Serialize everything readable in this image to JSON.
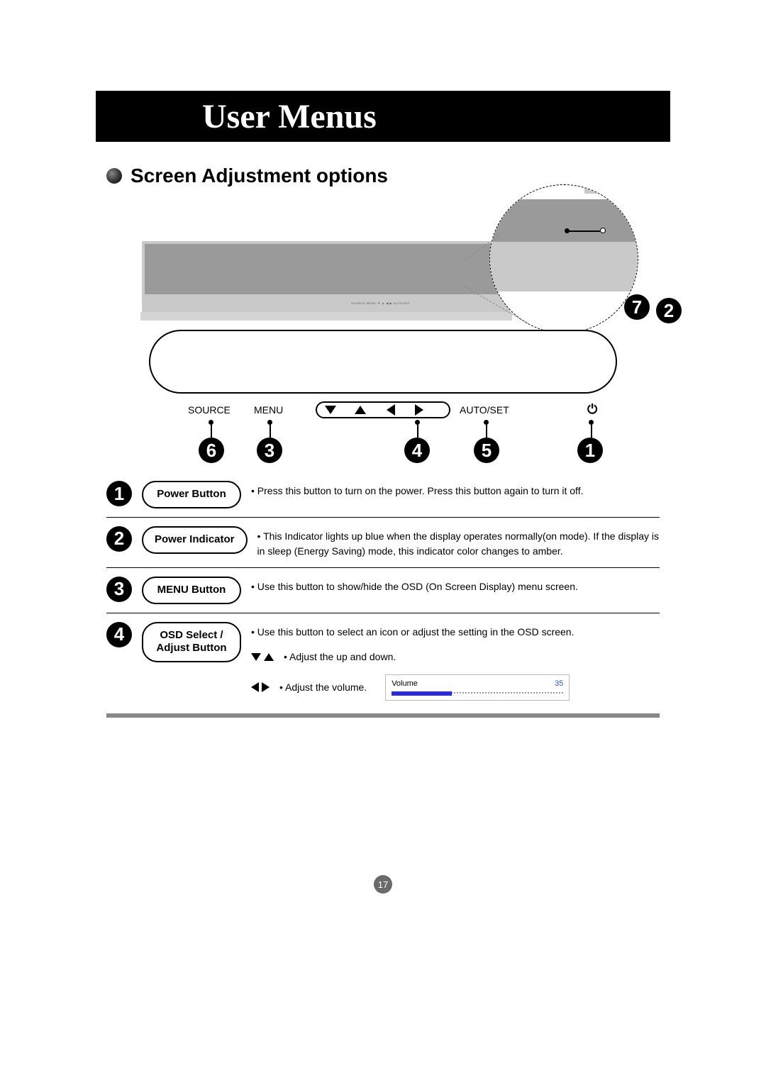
{
  "header": {
    "title": "User Menus"
  },
  "section": {
    "title": "Screen Adjustment options"
  },
  "panel": {
    "source": "SOURCE",
    "menu": "MENU",
    "autoset": "AUTO/SET",
    "tiny": "SOURCE  MENU  ▼  ▲  ◀  ▶  AUTO/SET"
  },
  "callouts": {
    "n1": "1",
    "n2": "2",
    "n3": "3",
    "n4": "4",
    "n5": "5",
    "n6": "6",
    "n7": "7"
  },
  "items": {
    "i1": {
      "label": "Power Button",
      "text": "Press this button to turn on the power. Press this button again to turn it off."
    },
    "i2": {
      "label": "Power Indicator",
      "text": "This Indicator lights up blue when the display operates normally(on mode). If the display is in sleep (Energy Saving) mode, this indicator color changes to amber."
    },
    "i3": {
      "label": "MENU Button",
      "text": "Use this button to show/hide the OSD (On Screen Display) menu screen."
    },
    "i4": {
      "label": "OSD Select /\nAdjust Button",
      "text1": "Use this button to select an icon or adjust the setting in the OSD screen.",
      "adjust_ud": "Adjust the up and down.",
      "adjust_vol": "Adjust the volume.",
      "vol_label": "Volume",
      "vol_value": "35",
      "vol_percent": 35
    }
  },
  "page": "17",
  "colors": {
    "accent_blue": "#2a2ae0",
    "value_blue": "#2a5bd7",
    "grey_divider": "#888888"
  }
}
